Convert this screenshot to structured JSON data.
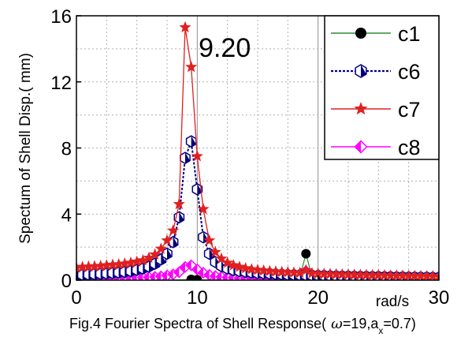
{
  "chart_data": {
    "type": "line",
    "title": "",
    "ylabel": "Spectum of Shell Disp.(  mm)",
    "xunit": "rad/s",
    "xlim": [
      0,
      30
    ],
    "ylim": [
      0,
      16
    ],
    "xticks": [
      0,
      10,
      20,
      30
    ],
    "yticks": [
      0,
      4,
      8,
      12,
      16
    ],
    "grid": true,
    "legend_position": "top-right",
    "annotation": {
      "text": "9.20",
      "x": 9.2
    },
    "caption": {
      "main": "Fig.4 Fourier Spectra of Shell Response(",
      "omega": "ω",
      "rest": "=19,a",
      "sub": "x",
      "end": "=0.7)"
    },
    "x": [
      0,
      0.5,
      1,
      1.5,
      2,
      2.5,
      3,
      3.5,
      4,
      4.5,
      5,
      5.5,
      6,
      6.5,
      7,
      7.5,
      8,
      8.5,
      9,
      9.5,
      10,
      10.5,
      11,
      11.5,
      12,
      12.5,
      13,
      13.5,
      14,
      14.5,
      15,
      15.5,
      16,
      16.5,
      17,
      17.5,
      18,
      18.5,
      19,
      19.5,
      20,
      20.5,
      21,
      21.5,
      22,
      22.5,
      23,
      23.5,
      24,
      24.5,
      25,
      25.5,
      26,
      26.5,
      27,
      27.5,
      28,
      28.5,
      29,
      29.5,
      30
    ],
    "series": [
      {
        "name": "c1",
        "color": "#2e8b2e",
        "marker": "circle",
        "values": [
          0.02,
          0.02,
          0.02,
          0.02,
          0.02,
          0.02,
          0.02,
          0.02,
          0.02,
          0.02,
          0.02,
          0.02,
          0.02,
          0.02,
          0.02,
          0.02,
          0.02,
          0.02,
          0.03,
          0.05,
          0.03,
          0.02,
          0.02,
          0.02,
          0.02,
          0.02,
          0.02,
          0.02,
          0.02,
          0.02,
          0.02,
          0.02,
          0.02,
          0.02,
          0.02,
          0.02,
          0.05,
          0.2,
          1.6,
          0.2,
          0.05,
          0.02,
          0.02,
          0.02,
          0.02,
          0.02,
          0.02,
          0.02,
          0.02,
          0.02,
          0.02,
          0.02,
          0.02,
          0.02,
          0.02,
          0.02,
          0.02,
          0.02,
          0.02,
          0.02,
          0.02
        ]
      },
      {
        "name": "c6",
        "color": "#000080",
        "marker": "hexagon",
        "values": [
          0.3,
          0.32,
          0.34,
          0.36,
          0.38,
          0.4,
          0.43,
          0.46,
          0.5,
          0.55,
          0.62,
          0.7,
          0.82,
          1.0,
          1.25,
          1.6,
          2.3,
          3.8,
          7.4,
          8.4,
          5.5,
          2.6,
          1.6,
          1.1,
          0.85,
          0.7,
          0.6,
          0.55,
          0.5,
          0.46,
          0.43,
          0.41,
          0.39,
          0.37,
          0.35,
          0.33,
          0.32,
          0.31,
          0.3,
          0.29,
          0.28,
          0.27,
          0.26,
          0.25,
          0.24,
          0.24,
          0.23,
          0.22,
          0.22,
          0.21,
          0.21,
          0.2,
          0.2,
          0.19,
          0.19,
          0.18,
          0.18,
          0.17,
          0.17,
          0.16,
          0.16
        ]
      },
      {
        "name": "c7",
        "color": "#e02020",
        "marker": "star",
        "values": [
          0.75,
          0.8,
          0.82,
          0.84,
          0.86,
          0.9,
          0.93,
          0.96,
          1.0,
          1.05,
          1.12,
          1.2,
          1.35,
          1.55,
          1.9,
          2.4,
          3.0,
          4.6,
          15.3,
          12.9,
          7.5,
          4.3,
          2.4,
          1.7,
          1.3,
          1.05,
          0.9,
          0.8,
          0.72,
          0.66,
          0.62,
          0.58,
          0.55,
          0.52,
          0.5,
          0.48,
          0.46,
          0.45,
          0.6,
          0.42,
          0.4,
          0.38,
          0.37,
          0.36,
          0.35,
          0.34,
          0.33,
          0.32,
          0.31,
          0.3,
          0.3,
          0.29,
          0.28,
          0.27,
          0.27,
          0.26,
          0.25,
          0.25,
          0.24,
          0.24,
          0.23
        ]
      },
      {
        "name": "c8",
        "color": "#ff00ff",
        "marker": "diamond",
        "values": [
          0.1,
          0.1,
          0.1,
          0.11,
          0.11,
          0.11,
          0.12,
          0.12,
          0.13,
          0.14,
          0.15,
          0.16,
          0.18,
          0.2,
          0.23,
          0.28,
          0.35,
          0.48,
          0.8,
          0.9,
          0.65,
          0.45,
          0.32,
          0.25,
          0.2,
          0.17,
          0.15,
          0.13,
          0.12,
          0.11,
          0.1,
          0.1,
          0.1,
          0.1,
          0.1,
          0.1,
          0.1,
          0.15,
          0.55,
          0.15,
          0.1,
          0.1,
          0.1,
          0.1,
          0.1,
          0.1,
          0.1,
          0.1,
          0.1,
          0.1,
          0.1,
          0.1,
          0.1,
          0.1,
          0.1,
          0.1,
          0.1,
          0.1,
          0.1,
          0.1,
          0.1
        ]
      }
    ]
  }
}
